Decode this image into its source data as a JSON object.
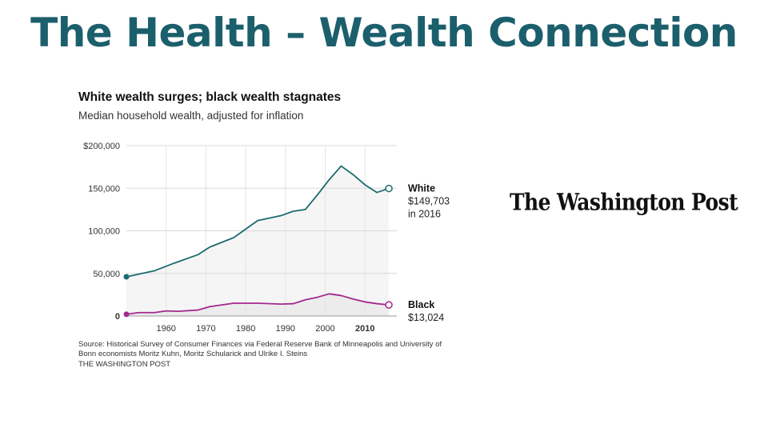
{
  "slide": {
    "title": "The Health – Wealth Connection"
  },
  "logo": {
    "text": "The Washington Post"
  },
  "chart_data": {
    "type": "line",
    "title": "White wealth surges; black wealth stagnates",
    "subtitle": "Median household wealth, adjusted for inflation",
    "xlabel": "",
    "ylabel": "",
    "xlim": [
      1950,
      2018
    ],
    "ylim": [
      0,
      200000
    ],
    "y_ticks": [
      {
        "value": 0,
        "label": "0"
      },
      {
        "value": 50000,
        "label": "50,000"
      },
      {
        "value": 100000,
        "label": "100,000"
      },
      {
        "value": 150000,
        "label": "150,000"
      },
      {
        "value": 200000,
        "label": "$200,000"
      }
    ],
    "x_ticks": [
      {
        "value": 1960,
        "label": "1960"
      },
      {
        "value": 1970,
        "label": "1970"
      },
      {
        "value": 1980,
        "label": "1980"
      },
      {
        "value": 1990,
        "label": "1990"
      },
      {
        "value": 2000,
        "label": "2000"
      },
      {
        "value": 2010,
        "label": "2010"
      }
    ],
    "series": [
      {
        "name": "White",
        "color": "#1d6b6e",
        "fill": "#f5f5f5",
        "x": [
          1950,
          1957,
          1962,
          1968,
          1971,
          1977,
          1983,
          1989,
          1992,
          1995,
          1998,
          2001,
          2004,
          2007,
          2010,
          2013,
          2016
        ],
        "y": [
          46000,
          53000,
          62000,
          72000,
          81000,
          92000,
          112000,
          118000,
          123000,
          125000,
          142000,
          160000,
          176000,
          166000,
          154000,
          145000,
          149703
        ],
        "end_label": {
          "name": "White",
          "value": "$149,703",
          "note": "in 2016"
        }
      },
      {
        "name": "Black",
        "color": "#a3288e",
        "fill": "#ececec",
        "x": [
          1950,
          1953,
          1957,
          1960,
          1963,
          1968,
          1971,
          1977,
          1983,
          1989,
          1992,
          1995,
          1998,
          2001,
          2004,
          2007,
          2010,
          2013,
          2016
        ],
        "y": [
          2000,
          4000,
          4000,
          6000,
          5500,
          7000,
          11000,
          15000,
          15000,
          14000,
          14500,
          19000,
          22000,
          26000,
          24000,
          20000,
          16500,
          14500,
          13024
        ],
        "end_label": {
          "name": "Black",
          "value": "$13,024"
        }
      }
    ],
    "source": "Source: Historical Survey of Consumer Finances via Federal Reserve Bank of Minneapolis and University of Bonn economists Moritz Kuhn, Moritz Schularick and Ulrike I. Steins",
    "publisher": "THE WASHINGTON POST"
  }
}
